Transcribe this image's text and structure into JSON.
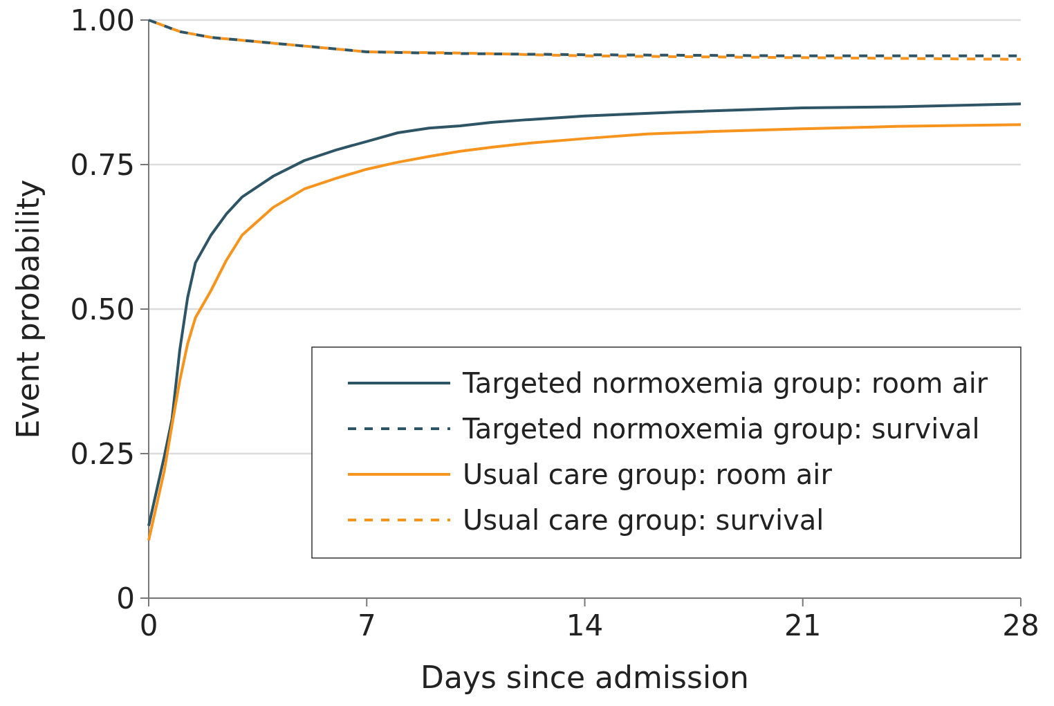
{
  "chart_data": {
    "type": "line",
    "xlabel": "Days since admission",
    "ylabel": "Event probability",
    "xlim": [
      0,
      28
    ],
    "ylim": [
      0,
      1
    ],
    "xticks": [
      0,
      7,
      14,
      21,
      28
    ],
    "yticks": [
      0,
      {
        "value": 0.25,
        "label": "0.25"
      },
      {
        "value": 0.5,
        "label": "0.50"
      },
      {
        "value": 0.75,
        "label": "0.75"
      },
      {
        "value": 1,
        "label": "1.00"
      }
    ],
    "grid": "y",
    "legend": "bottom right",
    "series": [
      {
        "name": "Targeted normoxemia group: room air",
        "color": "#2e5566",
        "line_style": "solid",
        "x": [
          0,
          0.5,
          0.75,
          1,
          1.25,
          1.5,
          2,
          2.5,
          3,
          4,
          5,
          6,
          7,
          8,
          9,
          10,
          11,
          12,
          14,
          17,
          21,
          24,
          28
        ],
        "values": [
          0.125,
          0.245,
          0.31,
          0.43,
          0.52,
          0.58,
          0.628,
          0.665,
          0.694,
          0.73,
          0.757,
          0.775,
          0.79,
          0.805,
          0.813,
          0.817,
          0.823,
          0.827,
          0.834,
          0.841,
          0.848,
          0.85,
          0.855
        ]
      },
      {
        "name": "Targeted normoxemia group: survival",
        "color": "#2e5566",
        "line_style": "dashed",
        "x": [
          0,
          0.5,
          1,
          2,
          3,
          4,
          5,
          6,
          7,
          10,
          14,
          21,
          28
        ],
        "values": [
          1,
          0.99,
          0.98,
          0.97,
          0.965,
          0.96,
          0.955,
          0.95,
          0.945,
          0.942,
          0.94,
          0.938,
          0.938
        ]
      },
      {
        "name": "Usual care group: room air",
        "color": "#f7941d",
        "line_style": "solid",
        "x": [
          0,
          0.5,
          0.75,
          1,
          1.25,
          1.5,
          2,
          2.5,
          3,
          4,
          5,
          6,
          7,
          8,
          9,
          10,
          11,
          12,
          14,
          16,
          18,
          21,
          24,
          28
        ],
        "values": [
          0.1,
          0.22,
          0.3,
          0.377,
          0.44,
          0.485,
          0.532,
          0.585,
          0.628,
          0.676,
          0.708,
          0.726,
          0.742,
          0.754,
          0.764,
          0.773,
          0.78,
          0.786,
          0.795,
          0.803,
          0.807,
          0.812,
          0.816,
          0.819
        ]
      },
      {
        "name": "Usual care group: survival",
        "color": "#f7941d",
        "line_style": "dashed",
        "x": [
          0,
          0.5,
          1,
          2,
          3,
          4,
          5,
          6,
          7,
          10,
          14,
          21,
          28
        ],
        "values": [
          1,
          0.99,
          0.98,
          0.97,
          0.965,
          0.96,
          0.955,
          0.95,
          0.945,
          0.943,
          0.938,
          0.935,
          0.932
        ]
      }
    ]
  }
}
